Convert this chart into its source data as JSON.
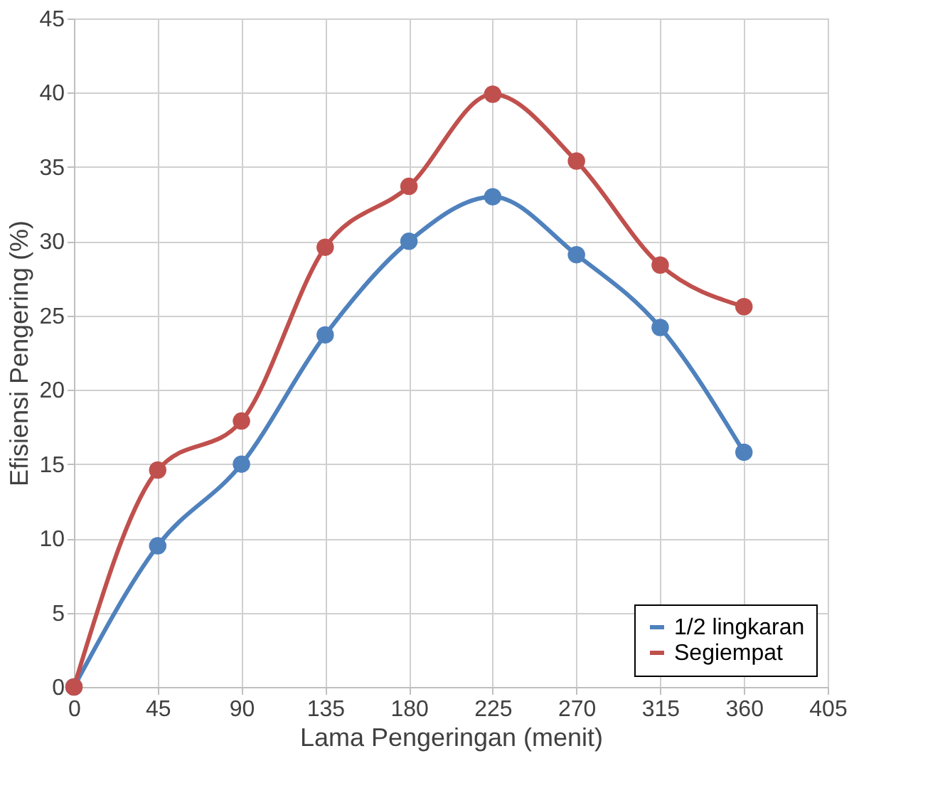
{
  "chart_data": {
    "type": "line",
    "xlabel": "Lama Pengeringan (menit)",
    "ylabel": "Efisiensi Pengering (%)",
    "x": [
      0,
      45,
      90,
      135,
      180,
      225,
      270,
      315,
      360
    ],
    "series": [
      {
        "name": "1/2 lingkaran",
        "color": "#4f81bd",
        "values": [
          0,
          9.5,
          15,
          23.7,
          30,
          33,
          29.1,
          24.2,
          15.8
        ]
      },
      {
        "name": "Segiempat",
        "color": "#c0504d",
        "values": [
          0,
          14.6,
          17.9,
          29.6,
          33.7,
          39.9,
          35.4,
          28.4,
          25.6
        ]
      }
    ],
    "xlim": [
      0,
      405
    ],
    "xticks": [
      0,
      45,
      90,
      135,
      180,
      225,
      270,
      315,
      360,
      405
    ],
    "ylim": [
      0,
      45
    ],
    "yticks": [
      0,
      5,
      10,
      15,
      20,
      25,
      30,
      35,
      40,
      45
    ],
    "grid": true,
    "legend": "bottom right",
    "marker": "circle",
    "line_style": "solid"
  }
}
